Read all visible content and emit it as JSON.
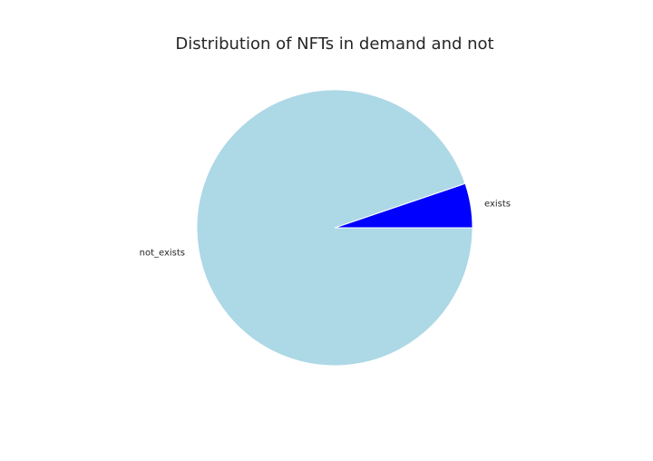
{
  "chart_data": {
    "type": "pie",
    "title": "Distribution of NFTs in demand and not",
    "labels": [
      "exists",
      "not_exists"
    ],
    "values": [
      5.2,
      94.8
    ],
    "colors": [
      "#0000ff",
      "#add8e6"
    ],
    "start_angle_deg": 0,
    "direction": "counterclockwise",
    "edge_color": "#ffffff",
    "legend": "none"
  }
}
